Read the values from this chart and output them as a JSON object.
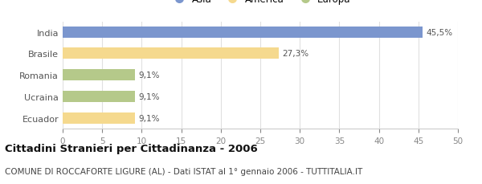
{
  "categories": [
    "India",
    "Brasile",
    "Romania",
    "Ucraina",
    "Ecuador"
  ],
  "values": [
    45.5,
    27.3,
    9.1,
    9.1,
    9.1
  ],
  "labels": [
    "45,5%",
    "27,3%",
    "9,1%",
    "9,1%",
    "9,1%"
  ],
  "colors": [
    "#7b96ce",
    "#f5d98e",
    "#b5c98a",
    "#b5c98a",
    "#f5d98e"
  ],
  "legend": [
    {
      "label": "Asia",
      "color": "#7b96ce"
    },
    {
      "label": "America",
      "color": "#f5d98e"
    },
    {
      "label": "Europa",
      "color": "#b5c98a"
    }
  ],
  "xlim": [
    0,
    50
  ],
  "xticks": [
    0,
    5,
    10,
    15,
    20,
    25,
    30,
    35,
    40,
    45,
    50
  ],
  "title": "Cittadini Stranieri per Cittadinanza - 2006",
  "subtitle": "COMUNE DI ROCCAFORTE LIGURE (AL) - Dati ISTAT al 1° gennaio 2006 - TUTTITALIA.IT",
  "title_fontsize": 9.5,
  "subtitle_fontsize": 7.5,
  "background_color": "#ffffff",
  "bar_height": 0.52
}
